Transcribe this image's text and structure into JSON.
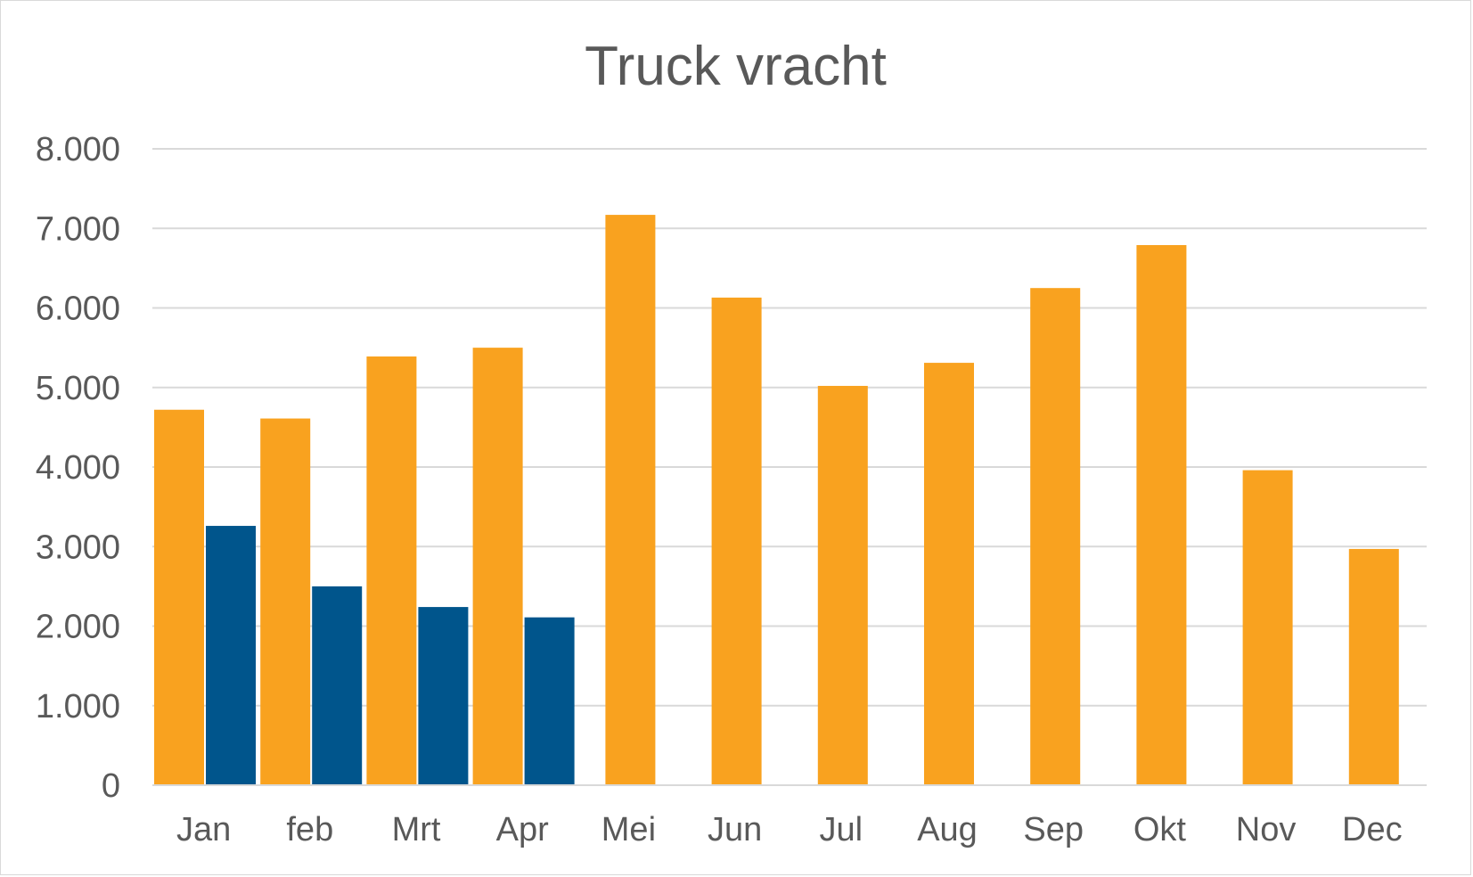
{
  "chart_data": {
    "type": "bar",
    "title": "Truck vracht",
    "xlabel": "",
    "ylabel": "",
    "categories": [
      "Jan",
      "feb",
      "Mrt",
      "Apr",
      "Mei",
      "Jun",
      "Jul",
      "Aug",
      "Sep",
      "Okt",
      "Nov",
      "Dec"
    ],
    "series": [
      {
        "color": "#F9A21F",
        "values": [
          4720,
          4610,
          5390,
          5500,
          7170,
          6130,
          5020,
          5310,
          6250,
          6790,
          3960,
          2970
        ]
      },
      {
        "color": "#00558C",
        "values": [
          3260,
          2500,
          2240,
          2110,
          null,
          null,
          null,
          null,
          null,
          null,
          null,
          null
        ]
      }
    ],
    "ylim": [
      0,
      8000
    ],
    "yticks": [
      0,
      1000,
      2000,
      3000,
      4000,
      5000,
      6000,
      7000,
      8000
    ],
    "ytick_labels": [
      "0",
      "1.000",
      "2.000",
      "3.000",
      "4.000",
      "5.000",
      "6.000",
      "7.000",
      "8.000"
    ],
    "grid": true,
    "gridline_color": "#d9d9d9",
    "legend": "none"
  }
}
